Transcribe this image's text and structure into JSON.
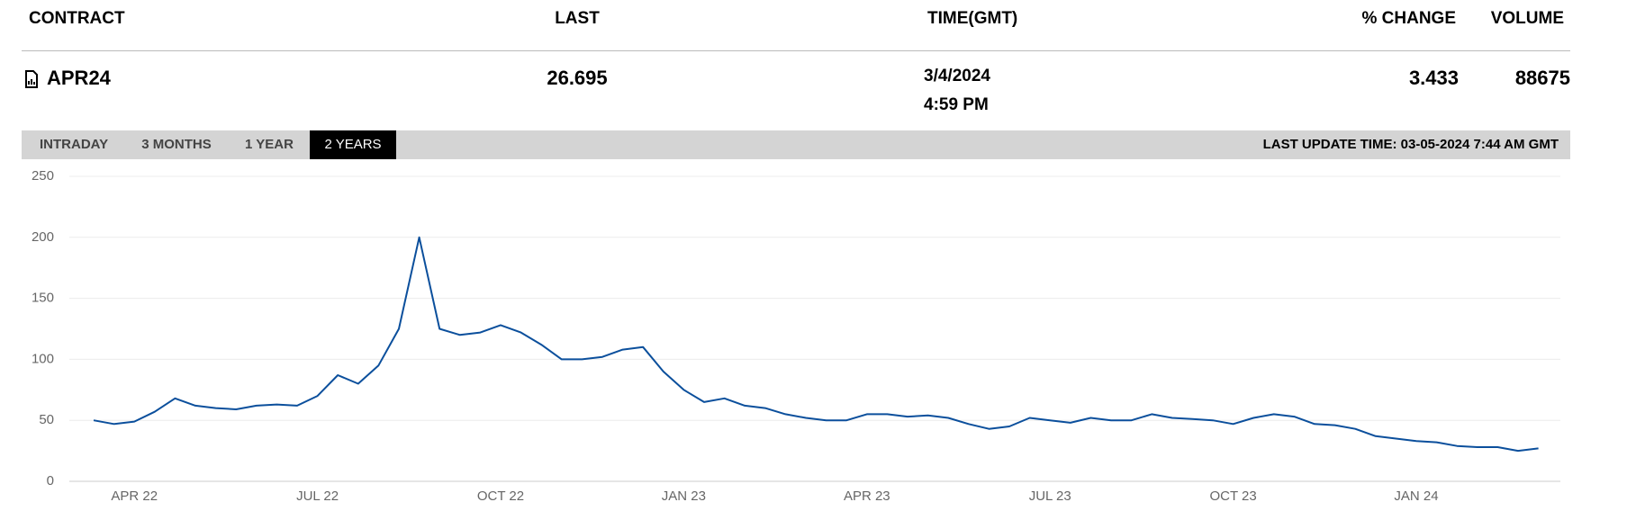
{
  "table": {
    "columns": [
      "CONTRACT",
      "LAST",
      "TIME(GMT)",
      "% CHANGE",
      "VOLUME"
    ],
    "row": {
      "contract": "APR24",
      "last": "26.695",
      "time": [
        "3/4/2024",
        "4:59 PM"
      ],
      "change": "3.433",
      "volume": "88675"
    }
  },
  "tabs": [
    "INTRADAY",
    "3 MONTHS",
    "1 YEAR",
    "2 YEARS"
  ],
  "active_tab": 3,
  "last_update": "LAST UPDATE TIME: 03-05-2024 7:44 AM GMT",
  "chart_data": {
    "type": "line",
    "color": "#0b4f9c",
    "grid": true,
    "categories": [
      null,
      null,
      "APR 22",
      null,
      null,
      null,
      null,
      null,
      null,
      null,
      null,
      "JUL 22",
      null,
      null,
      null,
      null,
      null,
      null,
      null,
      null,
      "OCT 22",
      null,
      null,
      null,
      null,
      null,
      null,
      null,
      null,
      "JAN 23",
      null,
      null,
      null,
      null,
      null,
      null,
      null,
      null,
      "APR 23",
      null,
      null,
      null,
      null,
      null,
      null,
      null,
      null,
      "JUL 23",
      null,
      null,
      null,
      null,
      null,
      null,
      null,
      null,
      "OCT 23",
      null,
      null,
      null,
      null,
      null,
      null,
      null,
      null,
      "JAN 24",
      null,
      null,
      null,
      null,
      null,
      null
    ],
    "values": [
      50,
      47,
      49,
      57,
      68,
      62,
      60,
      59,
      62,
      63,
      62,
      70,
      87,
      80,
      95,
      125,
      200,
      125,
      120,
      122,
      128,
      122,
      112,
      100,
      100,
      102,
      108,
      110,
      90,
      75,
      65,
      68,
      62,
      60,
      55,
      52,
      50,
      50,
      55,
      55,
      53,
      54,
      52,
      47,
      43,
      45,
      52,
      50,
      48,
      52,
      50,
      50,
      55,
      52,
      51,
      50,
      47,
      52,
      55,
      53,
      47,
      46,
      43,
      37,
      35,
      33,
      32,
      29,
      28,
      28,
      25,
      27
    ],
    "ylim": [
      0,
      250
    ],
    "yticks": [
      0,
      50,
      100,
      150,
      200,
      250
    ]
  }
}
